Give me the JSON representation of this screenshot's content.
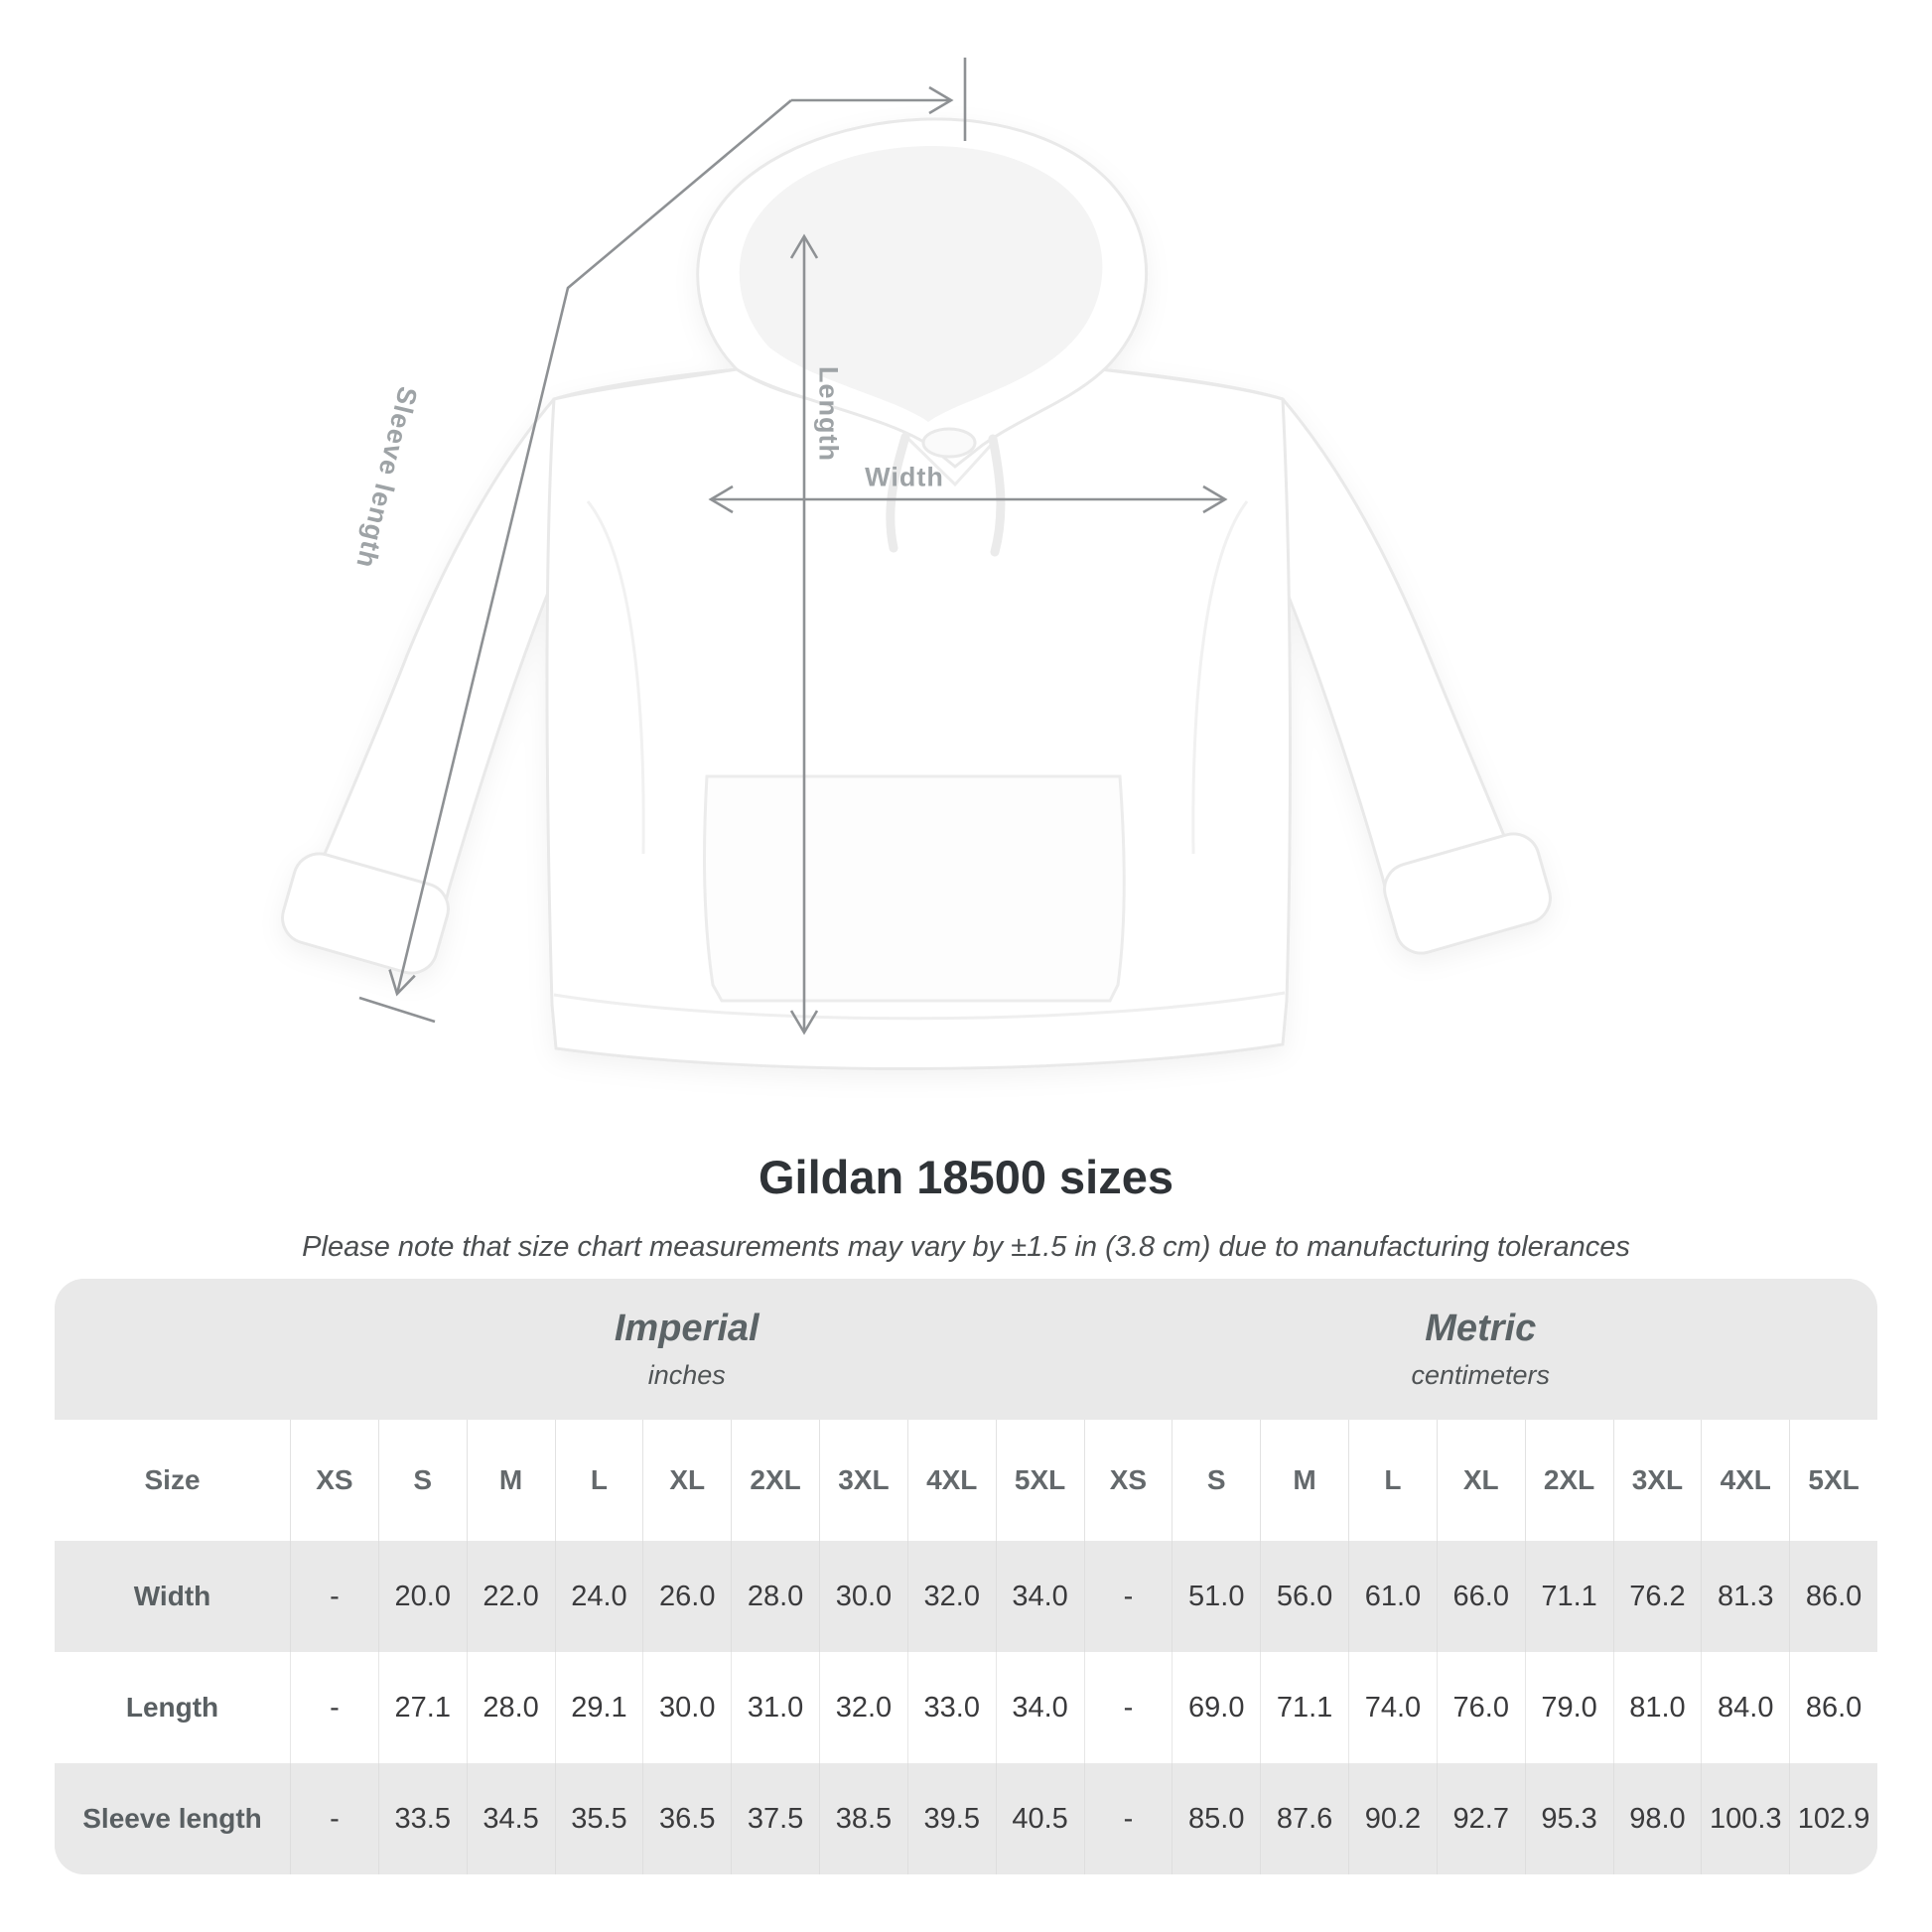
{
  "diagram": {
    "length_label": "Length",
    "width_label": "Width",
    "sleeve_label": "Sleeve length"
  },
  "colors": {
    "table_band": "#e9e9e9",
    "measurement_line": "#8e9194",
    "measurement_label": "#9ea3a6"
  },
  "chart_data": {
    "type": "table",
    "title": "Gildan 18500 sizes",
    "subtitle": "Please note that size chart measurements may vary by ±1.5 in (3.8 cm) due to manufacturing tolerances",
    "size_header_label": "Size",
    "column_groups": [
      {
        "label": "Imperial",
        "sublabel": "inches"
      },
      {
        "label": "Metric",
        "sublabel": "centimeters"
      }
    ],
    "size_columns": [
      "XS",
      "S",
      "M",
      "L",
      "XL",
      "2XL",
      "3XL",
      "4XL",
      "5XL"
    ],
    "rows": [
      {
        "label": "Width",
        "imperial": [
          "-",
          "20.0",
          "22.0",
          "24.0",
          "26.0",
          "28.0",
          "30.0",
          "32.0",
          "34.0"
        ],
        "metric": [
          "-",
          "51.0",
          "56.0",
          "61.0",
          "66.0",
          "71.1",
          "76.2",
          "81.3",
          "86.0"
        ]
      },
      {
        "label": "Length",
        "imperial": [
          "-",
          "27.1",
          "28.0",
          "29.1",
          "30.0",
          "31.0",
          "32.0",
          "33.0",
          "34.0"
        ],
        "metric": [
          "-",
          "69.0",
          "71.1",
          "74.0",
          "76.0",
          "79.0",
          "81.0",
          "84.0",
          "86.0"
        ]
      },
      {
        "label": "Sleeve length",
        "imperial": [
          "-",
          "33.5",
          "34.5",
          "35.5",
          "36.5",
          "37.5",
          "38.5",
          "39.5",
          "40.5"
        ],
        "metric": [
          "-",
          "85.0",
          "87.6",
          "90.2",
          "92.7",
          "95.3",
          "98.0",
          "100.3",
          "102.9"
        ]
      }
    ]
  }
}
